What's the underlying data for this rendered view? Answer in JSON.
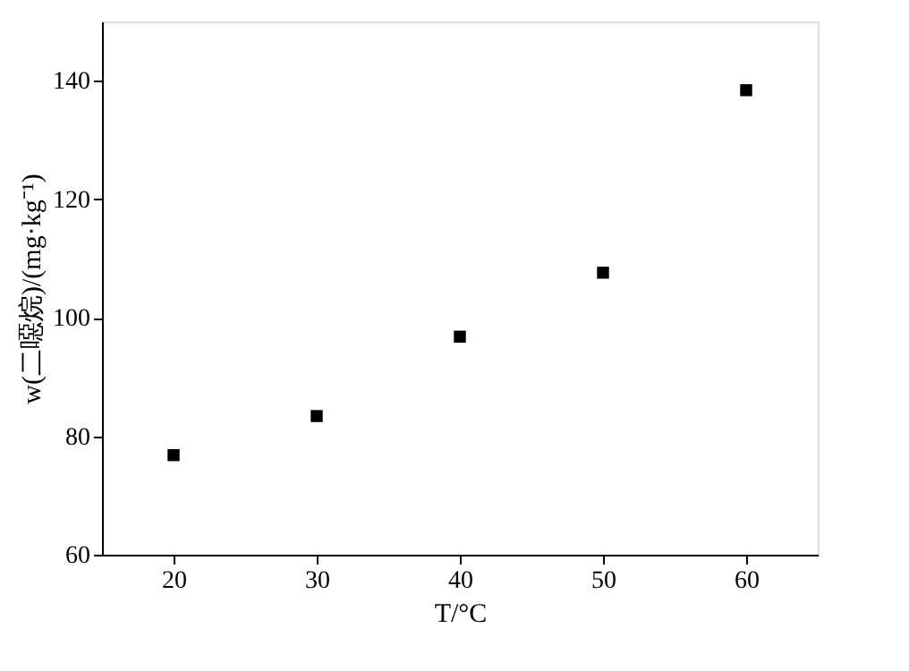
{
  "chart_data": {
    "type": "scatter",
    "xlabel": "T/°C",
    "ylabel": "w(二噁烷)/(mg·kg⁻¹)",
    "x": [
      20,
      30,
      40,
      50,
      60
    ],
    "series": [
      {
        "color": "#000000",
        "values": [
          76.8,
          83.4,
          96.8,
          107.6,
          138.4
        ]
      }
    ],
    "xlim": [
      15,
      65
    ],
    "xticks": [
      20,
      30,
      40,
      50,
      60
    ],
    "ylim": [
      60,
      150
    ],
    "yticks": [
      60,
      80,
      100,
      120,
      140
    ],
    "marker": "square",
    "grid": false,
    "legend": false
  }
}
